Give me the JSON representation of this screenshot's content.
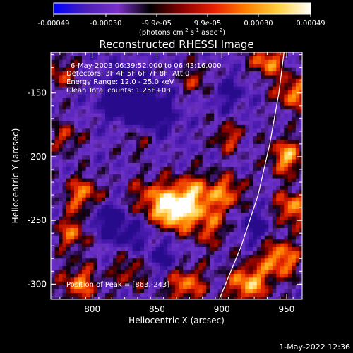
{
  "chart_data": {
    "type": "heatmap",
    "title": "Reconstructed RHESSI Image",
    "xlabel": "Heliocentric X (arcsec)",
    "ylabel": "Heliocentric Y (arcsec)",
    "xlim": [
      768,
      962
    ],
    "ylim": [
      -312,
      -118
    ],
    "xticks": [
      800,
      850,
      900,
      950
    ],
    "yticks": [
      -150,
      -200,
      -250,
      -300
    ],
    "colorbar": {
      "range": [
        -0.00049,
        0.00049
      ],
      "ticks": [
        "-0.00049",
        "-0.00030",
        "-9.9e-05",
        "9.9e-05",
        "0.00030",
        "0.00049"
      ],
      "unit_prefix": "(photons cm",
      "unit_exp1": "-2",
      "unit_mid": " s",
      "unit_exp2": "-1",
      "unit_mid2": " asec",
      "unit_exp3": "-2",
      "unit_suffix": ")",
      "colors": [
        "#0000ff",
        "#4a20b8",
        "#7a30c8",
        "#000000",
        "#8a0000",
        "#e82000",
        "#ff8000",
        "#ffd040",
        "#ffffff"
      ]
    },
    "annotations": {
      "time_range": "6-May-2003 06:39:52.000 to 06:43:16.000",
      "detectors": "Detectors: 3F 4F 5F 6F 7F 8F, Att 0",
      "energy": "Energy Range: 12.0 - 25.0 keV",
      "method": "Clean    Total counts: 1.25E+03",
      "peak": "Position of Peak = [863,-243]"
    },
    "peak": {
      "x": 863,
      "y": -243
    },
    "limb": [
      [
        898,
        -312
      ],
      [
        915,
        -270
      ],
      [
        928,
        -230
      ],
      [
        937,
        -190
      ],
      [
        944,
        -150
      ],
      [
        948,
        -118
      ]
    ],
    "bright_sources": [
      {
        "x": 863,
        "y": -243,
        "amp": 1.0,
        "r": 10
      },
      {
        "x": 878,
        "y": -230,
        "amp": 0.75,
        "r": 12
      },
      {
        "x": 845,
        "y": -232,
        "amp": 0.55,
        "r": 12
      },
      {
        "x": 905,
        "y": -228,
        "amp": 0.6,
        "r": 10
      },
      {
        "x": 890,
        "y": -255,
        "amp": 0.5,
        "r": 12
      },
      {
        "x": 793,
        "y": -230,
        "amp": 0.7,
        "r": 10
      },
      {
        "x": 785,
        "y": -260,
        "amp": 0.6,
        "r": 10
      },
      {
        "x": 790,
        "y": -300,
        "amp": 0.65,
        "r": 11
      },
      {
        "x": 830,
        "y": -290,
        "amp": 0.45,
        "r": 10
      },
      {
        "x": 872,
        "y": -300,
        "amp": 0.7,
        "r": 11
      },
      {
        "x": 920,
        "y": -300,
        "amp": 0.85,
        "r": 11
      },
      {
        "x": 945,
        "y": -280,
        "amp": 0.8,
        "r": 11
      },
      {
        "x": 955,
        "y": -240,
        "amp": 0.75,
        "r": 10
      },
      {
        "x": 950,
        "y": -200,
        "amp": 0.8,
        "r": 10
      },
      {
        "x": 955,
        "y": -150,
        "amp": 0.7,
        "r": 10
      },
      {
        "x": 935,
        "y": -125,
        "amp": 0.75,
        "r": 9
      },
      {
        "x": 905,
        "y": -185,
        "amp": 0.5,
        "r": 9
      },
      {
        "x": 880,
        "y": -140,
        "amp": 0.45,
        "r": 9
      },
      {
        "x": 835,
        "y": -185,
        "amp": 0.4,
        "r": 9
      },
      {
        "x": 780,
        "y": -185,
        "amp": 0.45,
        "r": 9
      },
      {
        "x": 775,
        "y": -135,
        "amp": 0.5,
        "r": 9
      }
    ],
    "dark_sources": [
      {
        "x": 825,
        "y": -150,
        "amp": 0.6,
        "r": 14
      },
      {
        "x": 845,
        "y": -165,
        "amp": 0.55,
        "r": 14
      },
      {
        "x": 810,
        "y": -250,
        "amp": 0.55,
        "r": 10
      },
      {
        "x": 855,
        "y": -280,
        "amp": 0.4,
        "r": 10
      },
      {
        "x": 830,
        "y": -260,
        "amp": 0.4,
        "r": 9
      },
      {
        "x": 925,
        "y": -255,
        "amp": 0.45,
        "r": 9
      },
      {
        "x": 905,
        "y": -150,
        "amp": 0.35,
        "r": 10
      }
    ]
  },
  "footer": {
    "timestamp": "1-May-2022 12:36"
  }
}
